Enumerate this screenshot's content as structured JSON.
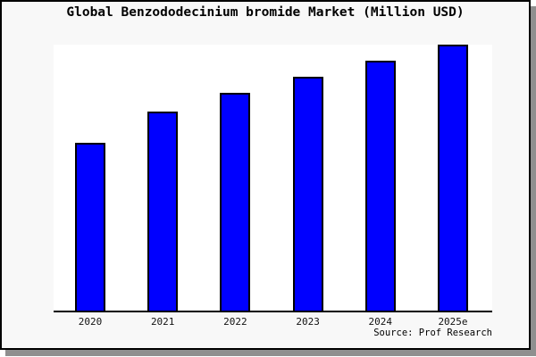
{
  "figure": {
    "background": "#f8f8f8",
    "border_color": "#000000",
    "shadow_color": "#8f8f8f"
  },
  "chart_data": {
    "type": "bar",
    "title": "Global Benzododecinium bromide Market (Million USD)",
    "categories": [
      "2020",
      "2021",
      "2022",
      "2023",
      "2024",
      "2025e"
    ],
    "values": [
      63,
      75,
      82,
      88,
      94,
      100
    ],
    "units": "relative height (tallest bar 2025e = 100); no numeric y-axis shown",
    "xlabel": "",
    "ylabel": "",
    "ylim": [
      0,
      100
    ],
    "grid": false,
    "legend": null,
    "bar_color": "#0000ff",
    "bar_border_color": "#000000",
    "plot_background": "#ffffff",
    "source_label": "Source: Prof Research"
  }
}
